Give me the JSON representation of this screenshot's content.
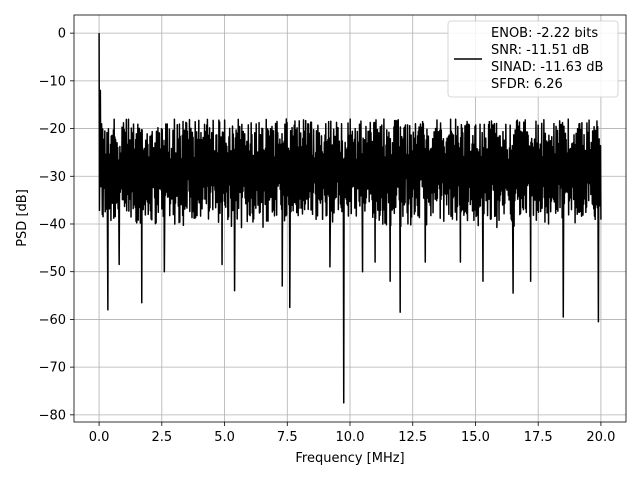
{
  "chart_data": {
    "type": "line",
    "title": "",
    "xlabel": "Frequency [MHz]",
    "ylabel": "PSD [dB]",
    "xlim": [
      -1.0,
      21.0
    ],
    "ylim": [
      -81.5,
      3.8
    ],
    "xticks": [
      0.0,
      2.5,
      5.0,
      7.5,
      10.0,
      12.5,
      15.0,
      17.5,
      20.0
    ],
    "xtick_labels": [
      "0.0",
      "2.5",
      "5.0",
      "7.5",
      "10.0",
      "12.5",
      "15.0",
      "17.5",
      "20.0"
    ],
    "yticks": [
      0,
      -10,
      -20,
      -30,
      -40,
      -50,
      -60,
      -70,
      -80
    ],
    "ytick_labels": [
      "0",
      "−10",
      "−20",
      "−30",
      "−40",
      "−50",
      "−60",
      "−70",
      "−80"
    ],
    "grid": true,
    "legend_position": "top-right",
    "series": [
      {
        "name": "",
        "color": "#000000",
        "legend_lines": [
          "ENOB: -2.22 bits",
          "SNR: -11.51 dB",
          "SINAD: -11.63 dB",
          "SFDR: 6.26"
        ],
        "x_range": [
          0.0,
          20.0
        ],
        "noise_floor": {
          "mean": -28,
          "upper": -18,
          "lower": -38
        },
        "peaks": [
          {
            "x": 0.0,
            "y": 0.0
          },
          {
            "x": 0.05,
            "y": -12
          },
          {
            "x": 0.1,
            "y": -19
          }
        ],
        "dips": [
          {
            "x": 0.35,
            "y": -58
          },
          {
            "x": 0.8,
            "y": -48.5
          },
          {
            "x": 1.7,
            "y": -56.5
          },
          {
            "x": 2.6,
            "y": -50
          },
          {
            "x": 4.9,
            "y": -48.5
          },
          {
            "x": 5.4,
            "y": -54
          },
          {
            "x": 7.3,
            "y": -53
          },
          {
            "x": 7.6,
            "y": -57.5
          },
          {
            "x": 9.2,
            "y": -49
          },
          {
            "x": 9.75,
            "y": -77.5
          },
          {
            "x": 10.5,
            "y": -50
          },
          {
            "x": 11.0,
            "y": -48
          },
          {
            "x": 11.6,
            "y": -52
          },
          {
            "x": 12.0,
            "y": -58.5
          },
          {
            "x": 13.0,
            "y": -48
          },
          {
            "x": 14.4,
            "y": -48
          },
          {
            "x": 15.3,
            "y": -52
          },
          {
            "x": 16.5,
            "y": -54.5
          },
          {
            "x": 17.2,
            "y": -52
          },
          {
            "x": 18.5,
            "y": -59.5
          },
          {
            "x": 19.9,
            "y": -60.5
          }
        ]
      }
    ]
  }
}
